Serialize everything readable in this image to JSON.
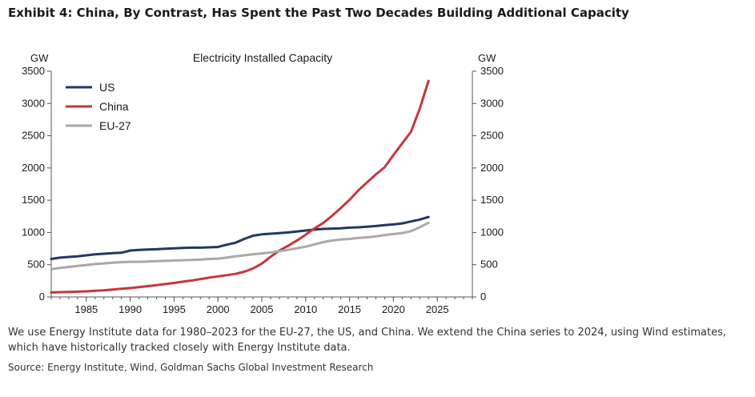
{
  "header": {
    "title": "Exhibit 4: China, By Contrast, Has Spent the Past Two Decades Building Additional Capacity"
  },
  "footer": {
    "note": "We use Energy Institute data for 1980–2023 for the EU-27, the US, and China. We extend the China series to 2024, using Wind estimates, which have historically tracked closely with Energy Institute data.",
    "source": "Source: Energy Institute, Wind, Goldman Sachs Global Investment Research"
  },
  "chart_data": {
    "type": "line",
    "title": "Electricity Installed Capacity",
    "ylabel_left": "GW",
    "ylabel_right": "GW",
    "xlim": [
      1981,
      2029
    ],
    "ylim": [
      0,
      3500
    ],
    "xticks": [
      1985,
      1990,
      1995,
      2000,
      2005,
      2010,
      2015,
      2020,
      2025
    ],
    "yticks": [
      0,
      500,
      1000,
      1500,
      2000,
      2500,
      3000,
      3500
    ],
    "legend_position": "top-left",
    "grid": false,
    "series": [
      {
        "name": "US",
        "color": "#1f3a5f",
        "x": [
          1981,
          1982,
          1983,
          1984,
          1985,
          1986,
          1987,
          1988,
          1989,
          1990,
          1991,
          1992,
          1993,
          1994,
          1995,
          1996,
          1997,
          1998,
          1999,
          2000,
          2001,
          2002,
          2003,
          2004,
          2005,
          2006,
          2007,
          2008,
          2009,
          2010,
          2011,
          2012,
          2013,
          2014,
          2015,
          2016,
          2017,
          2018,
          2019,
          2020,
          2021,
          2022,
          2023,
          2024
        ],
        "values": [
          590,
          610,
          620,
          630,
          645,
          660,
          670,
          680,
          685,
          720,
          730,
          735,
          740,
          748,
          755,
          760,
          765,
          765,
          770,
          775,
          810,
          840,
          900,
          950,
          970,
          980,
          990,
          1000,
          1015,
          1030,
          1045,
          1055,
          1060,
          1065,
          1075,
          1080,
          1090,
          1100,
          1115,
          1125,
          1140,
          1170,
          1200,
          1240
        ]
      },
      {
        "name": "China",
        "color": "#c8363a",
        "x": [
          1981,
          1982,
          1983,
          1984,
          1985,
          1986,
          1987,
          1988,
          1989,
          1990,
          1991,
          1992,
          1993,
          1994,
          1995,
          1996,
          1997,
          1998,
          1999,
          2000,
          2001,
          2002,
          2003,
          2004,
          2005,
          2006,
          2007,
          2008,
          2009,
          2010,
          2011,
          2012,
          2013,
          2014,
          2015,
          2016,
          2017,
          2018,
          2019,
          2020,
          2021,
          2022,
          2023,
          2024
        ],
        "values": [
          70,
          75,
          78,
          82,
          87,
          95,
          103,
          115,
          126,
          138,
          152,
          167,
          183,
          200,
          217,
          237,
          254,
          277,
          299,
          319,
          338,
          357,
          391,
          442,
          517,
          623,
          718,
          793,
          874,
          966,
          1063,
          1147,
          1258,
          1378,
          1507,
          1651,
          1777,
          1900,
          2011,
          2200,
          2380,
          2560,
          2920,
          3350
        ]
      },
      {
        "name": "EU-27",
        "color": "#a9a9a9",
        "x": [
          1981,
          1982,
          1983,
          1984,
          1985,
          1986,
          1987,
          1988,
          1989,
          1990,
          1991,
          1992,
          1993,
          1994,
          1995,
          1996,
          1997,
          1998,
          1999,
          2000,
          2001,
          2002,
          2003,
          2004,
          2005,
          2006,
          2007,
          2008,
          2009,
          2010,
          2011,
          2012,
          2013,
          2014,
          2015,
          2016,
          2017,
          2018,
          2019,
          2020,
          2021,
          2022,
          2023,
          2024
        ],
        "values": [
          430,
          450,
          465,
          480,
          495,
          510,
          520,
          530,
          540,
          545,
          545,
          550,
          555,
          560,
          565,
          570,
          575,
          580,
          590,
          595,
          610,
          630,
          645,
          660,
          675,
          690,
          710,
          730,
          755,
          780,
          815,
          850,
          875,
          890,
          900,
          915,
          925,
          940,
          960,
          975,
          990,
          1020,
          1080,
          1150
        ]
      }
    ]
  }
}
